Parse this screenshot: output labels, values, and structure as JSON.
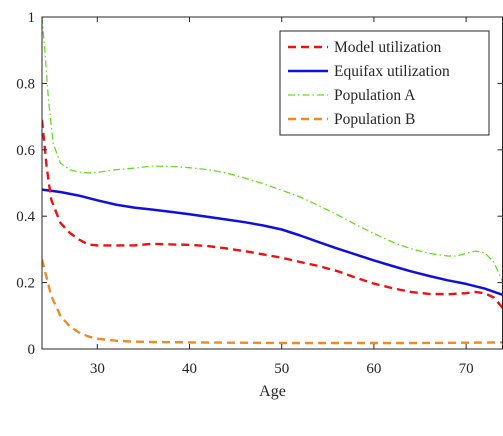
{
  "chart_data": {
    "type": "line",
    "title": "",
    "xlabel": "Age",
    "ylabel": "",
    "xlim": [
      24,
      74
    ],
    "ylim": [
      0,
      1
    ],
    "xticks": [
      30,
      40,
      50,
      60,
      70
    ],
    "yticks": [
      0,
      0.2,
      0.4,
      0.6,
      0.8,
      1
    ],
    "ytick_labels": [
      "0",
      "0.2",
      "0.4",
      "0.6",
      "0.8",
      "1"
    ],
    "grid": false,
    "legend_position": "top-right",
    "series": [
      {
        "name": "Model utilization",
        "color": "#ee1111",
        "style": "dashed",
        "x": [
          24,
          24.5,
          25,
          26,
          27,
          28,
          29,
          30,
          32,
          34,
          36,
          38,
          40,
          42,
          44,
          46,
          48,
          50,
          52,
          54,
          56,
          58,
          60,
          62,
          64,
          66,
          68,
          70,
          71,
          72,
          73,
          74
        ],
        "y": [
          0.69,
          0.55,
          0.45,
          0.38,
          0.35,
          0.33,
          0.315,
          0.312,
          0.312,
          0.312,
          0.317,
          0.315,
          0.314,
          0.31,
          0.303,
          0.295,
          0.285,
          0.275,
          0.262,
          0.25,
          0.235,
          0.215,
          0.197,
          0.183,
          0.172,
          0.166,
          0.165,
          0.168,
          0.172,
          0.168,
          0.155,
          0.123
        ]
      },
      {
        "name": "Equifax utilization",
        "color": "#1010dd",
        "style": "solid",
        "x": [
          24,
          26,
          28,
          30,
          32,
          34,
          36,
          38,
          40,
          42,
          44,
          46,
          48,
          50,
          52,
          54,
          56,
          58,
          60,
          62,
          64,
          66,
          68,
          70,
          72,
          74
        ],
        "y": [
          0.48,
          0.473,
          0.462,
          0.448,
          0.435,
          0.426,
          0.42,
          0.413,
          0.406,
          0.398,
          0.39,
          0.382,
          0.372,
          0.36,
          0.342,
          0.322,
          0.303,
          0.285,
          0.267,
          0.25,
          0.234,
          0.22,
          0.207,
          0.196,
          0.182,
          0.163
        ]
      },
      {
        "name": "Population A",
        "color": "#66dd22",
        "style": "dashdot",
        "x": [
          24,
          24.3,
          24.7,
          25.2,
          26,
          27,
          28,
          29,
          30,
          32,
          34,
          36,
          38,
          40,
          42,
          44,
          46,
          48,
          50,
          52,
          54,
          56,
          58,
          60,
          62,
          64,
          66,
          68,
          69,
          70,
          71,
          72,
          73,
          74
        ],
        "y": [
          1.0,
          0.9,
          0.75,
          0.62,
          0.56,
          0.54,
          0.533,
          0.53,
          0.532,
          0.54,
          0.545,
          0.551,
          0.55,
          0.546,
          0.54,
          0.53,
          0.515,
          0.498,
          0.478,
          0.458,
          0.432,
          0.405,
          0.375,
          0.348,
          0.322,
          0.302,
          0.288,
          0.28,
          0.28,
          0.288,
          0.295,
          0.29,
          0.262,
          0.2
        ]
      },
      {
        "name": "Population B",
        "color": "#f08a24",
        "style": "dashed",
        "x": [
          24,
          25,
          26,
          27,
          28,
          29,
          30,
          32,
          34,
          36,
          40,
          45,
          50,
          55,
          60,
          65,
          70,
          74
        ],
        "y": [
          0.27,
          0.16,
          0.1,
          0.068,
          0.05,
          0.038,
          0.031,
          0.025,
          0.022,
          0.021,
          0.02,
          0.019,
          0.018,
          0.018,
          0.018,
          0.018,
          0.019,
          0.02
        ]
      }
    ]
  }
}
